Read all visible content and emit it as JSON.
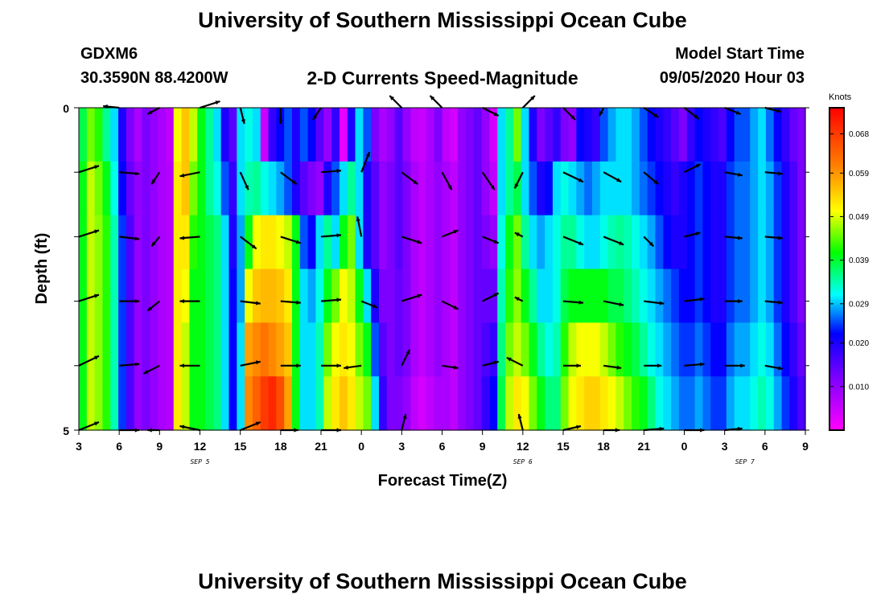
{
  "header": {
    "title": "University of Southern Mississippi Ocean Cube",
    "station_id": "GDXM6",
    "station_location": "30.3590N 88.4200W",
    "plot_title": "2-D Currents Speed-Magnitude",
    "model_start_label": "Model Start Time",
    "model_start_value": "09/05/2020 Hour 03"
  },
  "footer": {
    "title": "University of Southern Mississippi Ocean Cube"
  },
  "chart_data": {
    "type": "heatmap",
    "x_tick_labels": [
      "3",
      "6",
      "9",
      "12",
      "15",
      "18",
      "21",
      "0",
      "3",
      "6",
      "9",
      "12",
      "15",
      "18",
      "21",
      "0",
      "3",
      "6",
      "9"
    ],
    "date_labels": [
      {
        "label": "SEP 5",
        "at_tick": 3
      },
      {
        "label": "SEP 6",
        "at_tick": 11
      },
      {
        "label": "SEP 7",
        "at_tick": 16.5
      }
    ],
    "xlabel": "Forecast Time(Z)",
    "ylabel": "Depth (ft)",
    "y_range": [
      0,
      5
    ],
    "y_tick_labels": [
      "0",
      "5"
    ],
    "colorbar": {
      "title": "Knots",
      "range": [
        0.0,
        0.074
      ],
      "ticks": [
        "0.068",
        "0.059",
        "0.049",
        "0.039",
        "0.029",
        "0.020",
        "0.010"
      ],
      "tick_values": [
        0.068,
        0.059,
        0.049,
        0.039,
        0.029,
        0.02,
        0.01
      ]
    },
    "speed_rows_top_to_bottom": [
      [
        0.038,
        0.045,
        0.042,
        0.035,
        0.03,
        0.02,
        0.012,
        0.008,
        0.012,
        0.01,
        0.008,
        0.006,
        0.05,
        0.055,
        0.048,
        0.04,
        0.035,
        0.03,
        0.02,
        0.015,
        0.03,
        0.032,
        0.03,
        0.005,
        0.018,
        0.022,
        0.025,
        0.02,
        0.025,
        0.022,
        0.015,
        0.01,
        0.018,
        0.002,
        0.02,
        0.03,
        0.025,
        0.012,
        0.008,
        0.01,
        0.015,
        0.01,
        0.006,
        0.005,
        0.008,
        0.012,
        0.006,
        0.004,
        0.01,
        0.012,
        0.014,
        0.01,
        0.004,
        0.03,
        0.035,
        0.045,
        0.03,
        0.02,
        0.012,
        0.015,
        0.018,
        0.012,
        0.01,
        0.022,
        0.02,
        0.018,
        0.025,
        0.028,
        0.03,
        0.03,
        0.028,
        0.025,
        0.022,
        0.02,
        0.018,
        0.015,
        0.012,
        0.018,
        0.022,
        0.02,
        0.018,
        0.016,
        0.022,
        0.025,
        0.025,
        0.028,
        0.03,
        0.026,
        0.022,
        0.018,
        0.014,
        0.012
      ],
      [
        0.04,
        0.048,
        0.045,
        0.04,
        0.032,
        0.022,
        0.014,
        0.01,
        0.012,
        0.01,
        0.008,
        0.007,
        0.052,
        0.055,
        0.045,
        0.04,
        0.035,
        0.032,
        0.025,
        0.018,
        0.03,
        0.034,
        0.035,
        0.032,
        0.03,
        0.028,
        0.025,
        0.02,
        0.015,
        0.012,
        0.01,
        0.02,
        0.025,
        0.03,
        0.035,
        0.03,
        0.02,
        0.015,
        0.01,
        0.012,
        0.015,
        0.012,
        0.008,
        0.006,
        0.008,
        0.01,
        0.008,
        0.006,
        0.01,
        0.012,
        0.014,
        0.01,
        0.006,
        0.03,
        0.035,
        0.038,
        0.03,
        0.025,
        0.02,
        0.022,
        0.03,
        0.032,
        0.03,
        0.028,
        0.026,
        0.028,
        0.03,
        0.03,
        0.03,
        0.03,
        0.028,
        0.026,
        0.024,
        0.022,
        0.02,
        0.018,
        0.02,
        0.022,
        0.024,
        0.022,
        0.02,
        0.02,
        0.024,
        0.026,
        0.026,
        0.028,
        0.03,
        0.028,
        0.024,
        0.02,
        0.016,
        0.012
      ],
      [
        0.04,
        0.048,
        0.046,
        0.042,
        0.034,
        0.024,
        0.016,
        0.01,
        0.012,
        0.01,
        0.008,
        0.007,
        0.052,
        0.052,
        0.042,
        0.04,
        0.038,
        0.036,
        0.03,
        0.02,
        0.028,
        0.04,
        0.05,
        0.052,
        0.052,
        0.05,
        0.048,
        0.04,
        0.025,
        0.022,
        0.03,
        0.035,
        0.03,
        0.04,
        0.045,
        0.03,
        0.02,
        0.015,
        0.01,
        0.012,
        0.015,
        0.012,
        0.008,
        0.006,
        0.008,
        0.01,
        0.008,
        0.006,
        0.01,
        0.012,
        0.014,
        0.012,
        0.01,
        0.032,
        0.04,
        0.045,
        0.035,
        0.03,
        0.028,
        0.03,
        0.032,
        0.035,
        0.035,
        0.032,
        0.03,
        0.03,
        0.032,
        0.034,
        0.035,
        0.034,
        0.032,
        0.03,
        0.028,
        0.025,
        0.022,
        0.02,
        0.02,
        0.022,
        0.024,
        0.022,
        0.02,
        0.02,
        0.024,
        0.026,
        0.026,
        0.028,
        0.03,
        0.028,
        0.024,
        0.02,
        0.016,
        0.012
      ],
      [
        0.04,
        0.048,
        0.046,
        0.042,
        0.034,
        0.024,
        0.016,
        0.01,
        0.012,
        0.01,
        0.008,
        0.007,
        0.052,
        0.05,
        0.04,
        0.04,
        0.038,
        0.036,
        0.03,
        0.022,
        0.028,
        0.05,
        0.055,
        0.056,
        0.056,
        0.055,
        0.052,
        0.04,
        0.03,
        0.028,
        0.032,
        0.04,
        0.045,
        0.05,
        0.048,
        0.04,
        0.03,
        0.02,
        0.012,
        0.012,
        0.014,
        0.012,
        0.008,
        0.006,
        0.008,
        0.01,
        0.008,
        0.006,
        0.01,
        0.012,
        0.014,
        0.014,
        0.014,
        0.034,
        0.042,
        0.046,
        0.04,
        0.035,
        0.03,
        0.03,
        0.032,
        0.038,
        0.04,
        0.04,
        0.04,
        0.04,
        0.04,
        0.038,
        0.038,
        0.036,
        0.034,
        0.032,
        0.03,
        0.028,
        0.026,
        0.024,
        0.022,
        0.022,
        0.024,
        0.022,
        0.02,
        0.02,
        0.024,
        0.026,
        0.026,
        0.028,
        0.03,
        0.028,
        0.024,
        0.02,
        0.016,
        0.012
      ],
      [
        0.04,
        0.048,
        0.046,
        0.042,
        0.034,
        0.024,
        0.016,
        0.01,
        0.012,
        0.01,
        0.008,
        0.007,
        0.052,
        0.048,
        0.04,
        0.04,
        0.038,
        0.036,
        0.03,
        0.022,
        0.03,
        0.058,
        0.06,
        0.062,
        0.06,
        0.058,
        0.055,
        0.04,
        0.03,
        0.03,
        0.034,
        0.045,
        0.05,
        0.052,
        0.05,
        0.045,
        0.04,
        0.025,
        0.015,
        0.012,
        0.014,
        0.012,
        0.008,
        0.006,
        0.008,
        0.01,
        0.008,
        0.006,
        0.01,
        0.012,
        0.014,
        0.016,
        0.018,
        0.036,
        0.045,
        0.048,
        0.045,
        0.04,
        0.035,
        0.032,
        0.034,
        0.042,
        0.048,
        0.05,
        0.05,
        0.05,
        0.048,
        0.045,
        0.042,
        0.04,
        0.038,
        0.035,
        0.032,
        0.03,
        0.028,
        0.026,
        0.024,
        0.024,
        0.026,
        0.024,
        0.022,
        0.022,
        0.026,
        0.028,
        0.028,
        0.03,
        0.032,
        0.03,
        0.026,
        0.022,
        0.018,
        0.014
      ],
      [
        0.04,
        0.048,
        0.046,
        0.042,
        0.034,
        0.024,
        0.016,
        0.01,
        0.012,
        0.01,
        0.008,
        0.007,
        0.052,
        0.048,
        0.04,
        0.04,
        0.038,
        0.036,
        0.03,
        0.022,
        0.03,
        0.06,
        0.064,
        0.068,
        0.07,
        0.066,
        0.058,
        0.04,
        0.03,
        0.03,
        0.034,
        0.048,
        0.052,
        0.055,
        0.052,
        0.048,
        0.045,
        0.03,
        0.018,
        0.012,
        0.012,
        0.01,
        0.006,
        0.004,
        0.006,
        0.008,
        0.008,
        0.006,
        0.01,
        0.012,
        0.014,
        0.018,
        0.022,
        0.038,
        0.048,
        0.052,
        0.05,
        0.045,
        0.04,
        0.036,
        0.036,
        0.045,
        0.05,
        0.052,
        0.054,
        0.054,
        0.052,
        0.05,
        0.048,
        0.045,
        0.042,
        0.04,
        0.036,
        0.032,
        0.03,
        0.028,
        0.026,
        0.026,
        0.028,
        0.026,
        0.024,
        0.024,
        0.028,
        0.03,
        0.03,
        0.032,
        0.034,
        0.032,
        0.028,
        0.024,
        0.02,
        0.016
      ]
    ],
    "vector_rows_top_to_bottom": [
      [
        [
          0,
          0
        ],
        [
          -20,
          -2
        ],
        [
          -15,
          8
        ],
        [
          25,
          -8
        ],
        [
          5,
          20
        ],
        [
          0,
          20
        ],
        [
          -10,
          15
        ],
        [
          0,
          0
        ],
        [
          -15,
          -15
        ],
        [
          -15,
          -15
        ],
        [
          20,
          10
        ],
        [
          15,
          -15
        ],
        [
          15,
          15
        ],
        [
          -5,
          10
        ],
        [
          18,
          12
        ],
        [
          18,
          14
        ],
        [
          20,
          8
        ],
        [
          20,
          5
        ]
      ],
      [
        [
          25,
          -8
        ],
        [
          25,
          2
        ],
        [
          -10,
          15
        ],
        [
          -25,
          5
        ],
        [
          10,
          22
        ],
        [
          20,
          15
        ],
        [
          25,
          -2
        ],
        [
          10,
          -25
        ],
        [
          20,
          15
        ],
        [
          12,
          22
        ],
        [
          15,
          22
        ],
        [
          -10,
          20
        ],
        [
          25,
          12
        ],
        [
          22,
          12
        ],
        [
          18,
          15
        ],
        [
          20,
          -10
        ],
        [
          22,
          4
        ],
        [
          22,
          2
        ]
      ],
      [
        [
          25,
          -8
        ],
        [
          25,
          3
        ],
        [
          -10,
          12
        ],
        [
          -25,
          2
        ],
        [
          20,
          15
        ],
        [
          25,
          8
        ],
        [
          25,
          -2
        ],
        [
          -5,
          -25
        ],
        [
          25,
          8
        ],
        [
          20,
          -8
        ],
        [
          20,
          8
        ],
        [
          -10,
          -5
        ],
        [
          25,
          10
        ],
        [
          25,
          10
        ],
        [
          12,
          12
        ],
        [
          20,
          -5
        ],
        [
          22,
          2
        ],
        [
          22,
          2
        ]
      ],
      [
        [
          25,
          -8
        ],
        [
          25,
          0
        ],
        [
          -15,
          12
        ],
        [
          -25,
          0
        ],
        [
          25,
          3
        ],
        [
          25,
          2
        ],
        [
          25,
          -2
        ],
        [
          20,
          8
        ],
        [
          25,
          -8
        ],
        [
          20,
          10
        ],
        [
          20,
          -10
        ],
        [
          -10,
          -5
        ],
        [
          25,
          2
        ],
        [
          25,
          5
        ],
        [
          25,
          3
        ],
        [
          25,
          -3
        ],
        [
          22,
          0
        ],
        [
          22,
          2
        ]
      ],
      [
        [
          25,
          -12
        ],
        [
          25,
          -2
        ],
        [
          -20,
          10
        ],
        [
          -25,
          0
        ],
        [
          25,
          -5
        ],
        [
          25,
          0
        ],
        [
          25,
          0
        ],
        [
          -22,
          3
        ],
        [
          10,
          -20
        ],
        [
          20,
          3
        ],
        [
          20,
          -5
        ],
        [
          -20,
          -10
        ],
        [
          22,
          0
        ],
        [
          22,
          3
        ],
        [
          22,
          0
        ],
        [
          25,
          -2
        ],
        [
          25,
          0
        ],
        [
          22,
          4
        ]
      ],
      [
        [
          25,
          -10
        ],
        [
          25,
          0
        ],
        [
          -15,
          0
        ],
        [
          -25,
          -5
        ],
        [
          25,
          -10
        ],
        [
          22,
          0
        ],
        [
          25,
          0
        ],
        [
          0,
          0
        ],
        [
          5,
          -20
        ],
        [
          0,
          0
        ],
        [
          0,
          0
        ],
        [
          -5,
          -20
        ],
        [
          22,
          -5
        ],
        [
          20,
          0
        ],
        [
          25,
          -2
        ],
        [
          25,
          0
        ],
        [
          22,
          -2
        ],
        [
          0,
          0
        ]
      ]
    ]
  }
}
